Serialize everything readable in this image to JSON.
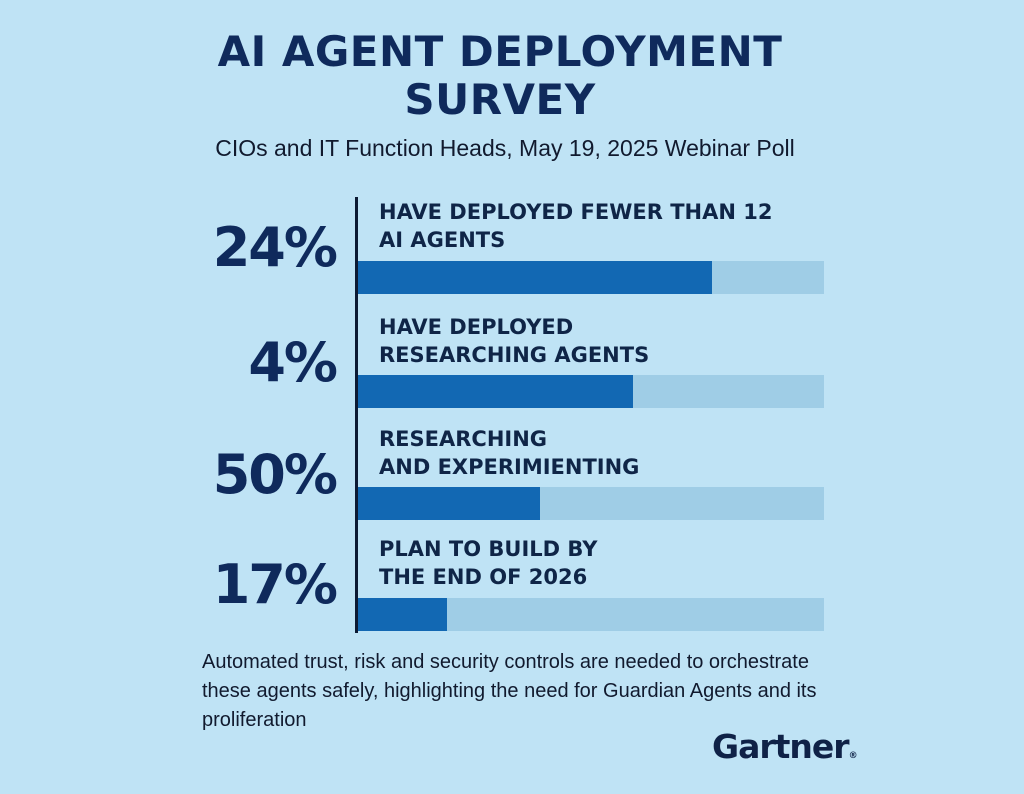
{
  "header": {
    "title_line1": "AI AGENT DEPLOYMENT",
    "title_line2": "SURVEY",
    "subtitle": "CIOs and IT Function Heads, May 19, 2025 Webinar Poll"
  },
  "chart_data": {
    "type": "bar",
    "orientation": "horizontal",
    "title": "AI AGENT DEPLOYMENT SURVEY",
    "subtitle": "CIOs and IT Function Heads, May 19, 2025 Webinar Poll",
    "categories": [
      "HAVE DEPLOYED FEWER THAN 12 AI AGENTS",
      "HAVE DEPLOYED RESEARCHING AGENTS",
      "RESEARCHING AND EXPERIMIENTING",
      "PLAN TO BUILD BY THE END OF 2026"
    ],
    "value_labels": [
      "24%",
      "4%",
      "50%",
      "17%"
    ],
    "values": [
      24,
      4,
      50,
      17
    ],
    "bar_fill_fraction": [
      0.76,
      0.59,
      0.39,
      0.19
    ],
    "xlabel": "",
    "ylabel": "",
    "grid": false,
    "legend": "none",
    "colors": {
      "fill": "#1268b3",
      "track": "#9fcde6"
    }
  },
  "rows": [
    {
      "pct": "24%",
      "label": "HAVE DEPLOYED FEWER THAN 12\nAI AGENTS",
      "fill": 0.76
    },
    {
      "pct": "4%",
      "label": "HAVE DEPLOYED\nRESEARCHING AGENTS",
      "fill": 0.59
    },
    {
      "pct": "50%",
      "label": "RESEARCHING\nAND EXPERIMIENTING",
      "fill": 0.39
    },
    {
      "pct": "17%",
      "label": "PLAN TO BUILD BY\nTHE END OF 2026",
      "fill": 0.19
    }
  ],
  "footnote": "Automated trust, risk and security controls are needed to orchestrate these agents safely, highlighting the need for Guardian Agents and its proliferation",
  "logo": {
    "text": "Gartner",
    "mark": "®"
  },
  "colors": {
    "background": "#bfe3f5",
    "title": "#0f2a5c",
    "bar": "#1268b3",
    "track": "#9fcde6"
  }
}
